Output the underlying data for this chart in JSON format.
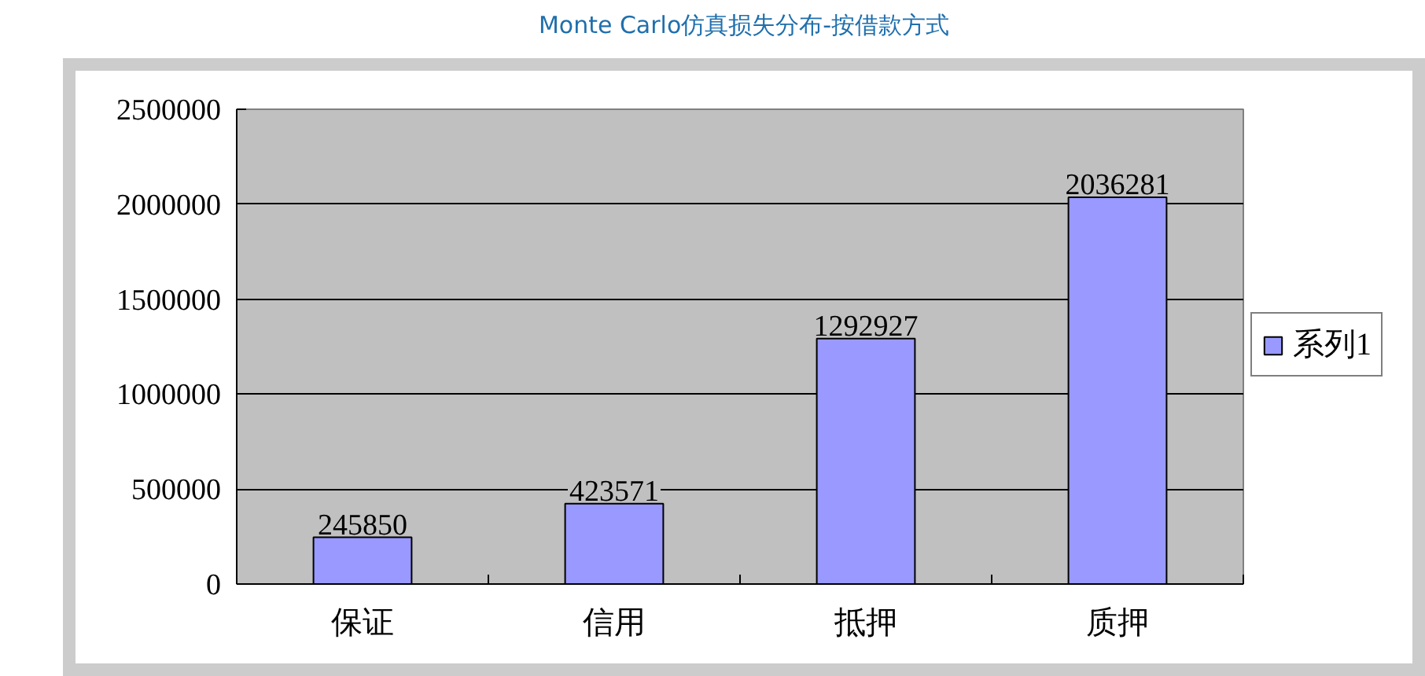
{
  "chart_data": {
    "type": "bar",
    "title": "Monte Carlo仿真损失分布-按借款方式",
    "categories": [
      "保证",
      "信用",
      "抵押",
      "质押"
    ],
    "series": [
      {
        "name": "系列1",
        "color": "#9999ff",
        "values": [
          245850,
          423571,
          1292927,
          2036281
        ]
      }
    ],
    "ylim": [
      0,
      2500000
    ],
    "yticks": [
      0,
      500000,
      1000000,
      1500000,
      2000000,
      2500000
    ],
    "grid": "y",
    "legend": "right",
    "data_labels": true
  }
}
